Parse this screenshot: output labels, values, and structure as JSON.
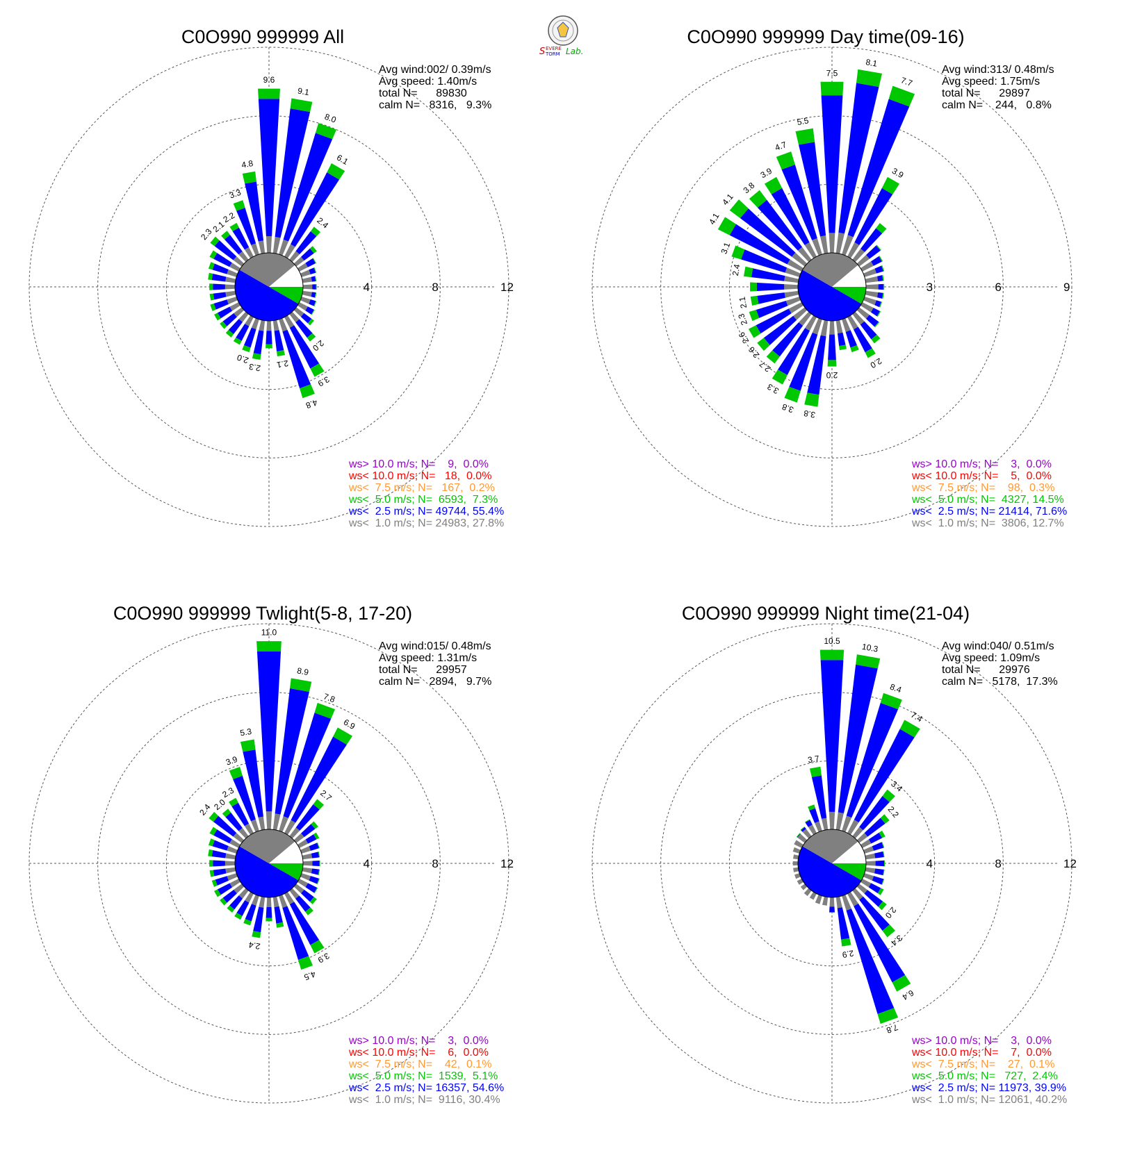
{
  "logo": {
    "text": "Severe Storm Lab."
  },
  "colors": {
    "gray": "#808080",
    "blue": "#0000ff",
    "green": "#00c800",
    "orange": "#ff9933",
    "red": "#ff0000",
    "purple": "#9900cc"
  },
  "chart_data": [
    {
      "type": "windrose",
      "title": "C0O990 999999 All",
      "stats": [
        "Avg wind:002/ 0.39m/s",
        "Avg speed: 1.40m/s",
        "total N=      89830",
        "calm N=   8316,   9.3%"
      ],
      "rings": [
        4,
        8,
        12
      ],
      "legend": [
        {
          "text": "ws> 10.0 m/s; N=    9,  0.0%",
          "color": "#9900cc"
        },
        {
          "text": "ws< 10.0 m/s; N=   18,  0.0%",
          "color": "#ff0000"
        },
        {
          "text": "ws<  7.5 m/s; N=   167,  0.2%",
          "color": "#ff9933"
        },
        {
          "text": "ws<  5.0 m/s; N=  6593,  7.3%",
          "color": "#00c800"
        },
        {
          "text": "ws<  2.5 m/s; N= 49744, 55.4%",
          "color": "#0000ff"
        },
        {
          "text": "ws<  1.0 m/s; N= 24983, 27.8%",
          "color": "#808080"
        }
      ],
      "sectors": [
        {
          "dir": 0,
          "total": 9.6,
          "label": "9.6"
        },
        {
          "dir": 10,
          "total": 9.1,
          "label": "9.1"
        },
        {
          "dir": 20,
          "total": 8.0,
          "label": "8.0"
        },
        {
          "dir": 30,
          "total": 6.1,
          "label": "6.1"
        },
        {
          "dir": 40,
          "total": 2.4,
          "label": "2.4"
        },
        {
          "dir": 50,
          "total": 1.5,
          "label": ""
        },
        {
          "dir": 60,
          "total": 1.1,
          "label": ""
        },
        {
          "dir": 70,
          "total": 0.9,
          "label": ""
        },
        {
          "dir": 80,
          "total": 0.8,
          "label": ""
        },
        {
          "dir": 90,
          "total": 0.8,
          "label": ""
        },
        {
          "dir": 100,
          "total": 0.8,
          "label": ""
        },
        {
          "dir": 110,
          "total": 0.9,
          "label": ""
        },
        {
          "dir": 120,
          "total": 1.0,
          "label": ""
        },
        {
          "dir": 130,
          "total": 1.3,
          "label": ""
        },
        {
          "dir": 140,
          "total": 2.0,
          "label": "2.0"
        },
        {
          "dir": 150,
          "total": 3.9,
          "label": "3.9"
        },
        {
          "dir": 160,
          "total": 4.8,
          "label": "4.8"
        },
        {
          "dir": 170,
          "total": 2.1,
          "label": "2.1"
        },
        {
          "dir": 180,
          "total": 1.6,
          "label": ""
        },
        {
          "dir": 190,
          "total": 2.3,
          "label": "2.3"
        },
        {
          "dir": 200,
          "total": 2.0,
          "label": "2.0"
        },
        {
          "dir": 210,
          "total": 1.8,
          "label": ""
        },
        {
          "dir": 220,
          "total": 1.7,
          "label": ""
        },
        {
          "dir": 230,
          "total": 1.6,
          "label": ""
        },
        {
          "dir": 240,
          "total": 1.6,
          "label": ""
        },
        {
          "dir": 250,
          "total": 1.6,
          "label": ""
        },
        {
          "dir": 260,
          "total": 1.5,
          "label": ""
        },
        {
          "dir": 270,
          "total": 1.5,
          "label": ""
        },
        {
          "dir": 280,
          "total": 1.6,
          "label": ""
        },
        {
          "dir": 290,
          "total": 1.7,
          "label": ""
        },
        {
          "dir": 300,
          "total": 1.9,
          "label": ""
        },
        {
          "dir": 310,
          "total": 2.3,
          "label": "2.3"
        },
        {
          "dir": 320,
          "total": 2.1,
          "label": "2.1"
        },
        {
          "dir": 330,
          "total": 2.2,
          "label": "2.2"
        },
        {
          "dir": 340,
          "total": 3.3,
          "label": "3.3"
        },
        {
          "dir": 350,
          "total": 4.8,
          "label": "4.8"
        }
      ]
    },
    {
      "type": "windrose",
      "title": "C0O990 999999 Day time(09-16)",
      "stats": [
        "Avg wind:313/ 0.48m/s",
        "Avg speed: 1.75m/s",
        "total N=      29897",
        "calm N=    244,   0.8%"
      ],
      "rings": [
        3,
        6,
        9
      ],
      "legend": [
        {
          "text": "ws> 10.0 m/s; N=    3,  0.0%",
          "color": "#9900cc"
        },
        {
          "text": "ws< 10.0 m/s; N=    5,  0.0%",
          "color": "#ff0000"
        },
        {
          "text": "ws<  7.5 m/s; N=    98,  0.3%",
          "color": "#ff9933"
        },
        {
          "text": "ws<  5.0 m/s; N=  4327, 14.5%",
          "color": "#00c800"
        },
        {
          "text": "ws<  2.5 m/s; N= 21414, 71.6%",
          "color": "#0000ff"
        },
        {
          "text": "ws<  1.0 m/s; N=  3806, 12.7%",
          "color": "#808080"
        }
      ],
      "sectors": [
        {
          "dir": 0,
          "total": 7.5,
          "label": "7.5"
        },
        {
          "dir": 10,
          "total": 8.1,
          "label": "8.1"
        },
        {
          "dir": 20,
          "total": 7.7,
          "label": "7.7"
        },
        {
          "dir": 30,
          "total": 3.9,
          "label": "3.9"
        },
        {
          "dir": 40,
          "total": 2.0,
          "label": ""
        },
        {
          "dir": 50,
          "total": 1.2,
          "label": ""
        },
        {
          "dir": 60,
          "total": 1.0,
          "label": ""
        },
        {
          "dir": 70,
          "total": 0.9,
          "label": ""
        },
        {
          "dir": 80,
          "total": 0.8,
          "label": ""
        },
        {
          "dir": 90,
          "total": 0.8,
          "label": ""
        },
        {
          "dir": 100,
          "total": 0.8,
          "label": ""
        },
        {
          "dir": 110,
          "total": 0.8,
          "label": ""
        },
        {
          "dir": 120,
          "total": 0.9,
          "label": ""
        },
        {
          "dir": 130,
          "total": 1.1,
          "label": ""
        },
        {
          "dir": 140,
          "total": 1.6,
          "label": ""
        },
        {
          "dir": 150,
          "total": 2.0,
          "label": "2.0"
        },
        {
          "dir": 160,
          "total": 1.5,
          "label": ""
        },
        {
          "dir": 170,
          "total": 1.3,
          "label": ""
        },
        {
          "dir": 180,
          "total": 2.0,
          "label": "2.0"
        },
        {
          "dir": 190,
          "total": 3.8,
          "label": "3.8"
        },
        {
          "dir": 200,
          "total": 3.8,
          "label": "3.8"
        },
        {
          "dir": 210,
          "total": 3.3,
          "label": "3.3"
        },
        {
          "dir": 220,
          "total": 2.7,
          "label": "2.7"
        },
        {
          "dir": 230,
          "total": 2.6,
          "label": "2.6"
        },
        {
          "dir": 240,
          "total": 2.6,
          "label": "2.6"
        },
        {
          "dir": 250,
          "total": 2.3,
          "label": "2.3"
        },
        {
          "dir": 260,
          "total": 2.1,
          "label": "2.1"
        },
        {
          "dir": 270,
          "total": 2.1,
          "label": ""
        },
        {
          "dir": 280,
          "total": 2.4,
          "label": "2.4"
        },
        {
          "dir": 290,
          "total": 3.1,
          "label": "3.1"
        },
        {
          "dir": 300,
          "total": 4.1,
          "label": "4.1"
        },
        {
          "dir": 310,
          "total": 4.1,
          "label": "4.1"
        },
        {
          "dir": 320,
          "total": 3.8,
          "label": "3.8"
        },
        {
          "dir": 330,
          "total": 3.9,
          "label": "3.9"
        },
        {
          "dir": 340,
          "total": 4.7,
          "label": "4.7"
        },
        {
          "dir": 350,
          "total": 5.5,
          "label": "5.5"
        }
      ]
    },
    {
      "type": "windrose",
      "title": "C0O990 999999 Twlight(5-8, 17-20)",
      "stats": [
        "Avg wind:015/ 0.48m/s",
        "Avg speed: 1.31m/s",
        "total N=      29957",
        "calm N=   2894,   9.7%"
      ],
      "rings": [
        4,
        8,
        12
      ],
      "legend": [
        {
          "text": "ws> 10.0 m/s; N=    3,  0.0%",
          "color": "#9900cc"
        },
        {
          "text": "ws< 10.0 m/s; N=    6,  0.0%",
          "color": "#ff0000"
        },
        {
          "text": "ws<  7.5 m/s; N=    42,  0.1%",
          "color": "#ff9933"
        },
        {
          "text": "ws<  5.0 m/s; N=  1539,  5.1%",
          "color": "#00c800"
        },
        {
          "text": "ws<  2.5 m/s; N= 16357, 54.6%",
          "color": "#0000ff"
        },
        {
          "text": "ws<  1.0 m/s; N=  9116, 30.4%",
          "color": "#808080"
        }
      ],
      "sectors": [
        {
          "dir": 0,
          "total": 11.0,
          "label": "11.0"
        },
        {
          "dir": 10,
          "total": 8.9,
          "label": "8.9"
        },
        {
          "dir": 20,
          "total": 7.8,
          "label": "7.8"
        },
        {
          "dir": 30,
          "total": 6.9,
          "label": "6.9"
        },
        {
          "dir": 40,
          "total": 2.7,
          "label": "2.7"
        },
        {
          "dir": 50,
          "total": 1.6,
          "label": ""
        },
        {
          "dir": 60,
          "total": 1.3,
          "label": ""
        },
        {
          "dir": 70,
          "total": 1.1,
          "label": ""
        },
        {
          "dir": 80,
          "total": 1.0,
          "label": ""
        },
        {
          "dir": 90,
          "total": 1.0,
          "label": ""
        },
        {
          "dir": 100,
          "total": 1.0,
          "label": ""
        },
        {
          "dir": 110,
          "total": 1.1,
          "label": ""
        },
        {
          "dir": 120,
          "total": 1.2,
          "label": ""
        },
        {
          "dir": 130,
          "total": 1.5,
          "label": ""
        },
        {
          "dir": 140,
          "total": 1.8,
          "label": ""
        },
        {
          "dir": 150,
          "total": 3.9,
          "label": "3.9"
        },
        {
          "dir": 160,
          "total": 4.5,
          "label": "4.5"
        },
        {
          "dir": 170,
          "total": 1.8,
          "label": ""
        },
        {
          "dir": 180,
          "total": 1.4,
          "label": ""
        },
        {
          "dir": 190,
          "total": 2.4,
          "label": "2.4"
        },
        {
          "dir": 200,
          "total": 1.8,
          "label": ""
        },
        {
          "dir": 210,
          "total": 1.7,
          "label": ""
        },
        {
          "dir": 220,
          "total": 1.6,
          "label": ""
        },
        {
          "dir": 230,
          "total": 1.6,
          "label": ""
        },
        {
          "dir": 240,
          "total": 1.6,
          "label": ""
        },
        {
          "dir": 250,
          "total": 1.5,
          "label": ""
        },
        {
          "dir": 260,
          "total": 1.5,
          "label": ""
        },
        {
          "dir": 270,
          "total": 1.5,
          "label": ""
        },
        {
          "dir": 280,
          "total": 1.6,
          "label": ""
        },
        {
          "dir": 290,
          "total": 1.7,
          "label": ""
        },
        {
          "dir": 300,
          "total": 1.9,
          "label": ""
        },
        {
          "dir": 310,
          "total": 2.4,
          "label": "2.4"
        },
        {
          "dir": 320,
          "total": 2.0,
          "label": "2.0"
        },
        {
          "dir": 330,
          "total": 2.3,
          "label": "2.3"
        },
        {
          "dir": 340,
          "total": 3.9,
          "label": "3.9"
        },
        {
          "dir": 350,
          "total": 5.3,
          "label": "5.3"
        }
      ]
    },
    {
      "type": "windrose",
      "title": "C0O990 999999 Night time(21-04)",
      "stats": [
        "Avg wind:040/ 0.51m/s",
        "Avg speed: 1.09m/s",
        "total N=      29976",
        "calm N=   5178,  17.3%"
      ],
      "rings": [
        4,
        8,
        12
      ],
      "legend": [
        {
          "text": "ws> 10.0 m/s; N=    3,  0.0%",
          "color": "#9900cc"
        },
        {
          "text": "ws< 10.0 m/s; N=    7,  0.0%",
          "color": "#ff0000"
        },
        {
          "text": "ws<  7.5 m/s; N=    27,  0.1%",
          "color": "#ff9933"
        },
        {
          "text": "ws<  5.0 m/s; N=   727,  2.4%",
          "color": "#00c800"
        },
        {
          "text": "ws<  2.5 m/s; N= 11973, 39.9%",
          "color": "#0000ff"
        },
        {
          "text": "ws<  1.0 m/s; N= 12061, 40.2%",
          "color": "#808080"
        }
      ],
      "sectors": [
        {
          "dir": 0,
          "total": 10.5,
          "label": "10.5"
        },
        {
          "dir": 10,
          "total": 10.3,
          "label": "10.3"
        },
        {
          "dir": 20,
          "total": 8.4,
          "label": "8.4"
        },
        {
          "dir": 30,
          "total": 7.4,
          "label": "7.4"
        },
        {
          "dir": 40,
          "total": 3.4,
          "label": "3.4"
        },
        {
          "dir": 50,
          "total": 2.2,
          "label": "2.2"
        },
        {
          "dir": 60,
          "total": 1.5,
          "label": ""
        },
        {
          "dir": 70,
          "total": 1.2,
          "label": ""
        },
        {
          "dir": 80,
          "total": 1.1,
          "label": ""
        },
        {
          "dir": 90,
          "total": 1.1,
          "label": ""
        },
        {
          "dir": 100,
          "total": 1.1,
          "label": ""
        },
        {
          "dir": 110,
          "total": 1.2,
          "label": ""
        },
        {
          "dir": 120,
          "total": 1.4,
          "label": ""
        },
        {
          "dir": 130,
          "total": 2.0,
          "label": "2.0"
        },
        {
          "dir": 140,
          "total": 3.4,
          "label": "3.4"
        },
        {
          "dir": 150,
          "total": 6.4,
          "label": "6.4"
        },
        {
          "dir": 160,
          "total": 7.8,
          "label": "7.8"
        },
        {
          "dir": 170,
          "total": 2.9,
          "label": "2.9"
        },
        {
          "dir": 180,
          "total": 0.9,
          "label": ""
        },
        {
          "dir": 190,
          "total": 0.5,
          "label": ""
        },
        {
          "dir": 200,
          "total": 0.5,
          "label": ""
        },
        {
          "dir": 210,
          "total": 0.4,
          "label": ""
        },
        {
          "dir": 220,
          "total": 0.4,
          "label": ""
        },
        {
          "dir": 230,
          "total": 0.3,
          "label": ""
        },
        {
          "dir": 240,
          "total": 0.3,
          "label": ""
        },
        {
          "dir": 250,
          "total": 0.3,
          "label": ""
        },
        {
          "dir": 260,
          "total": 0.3,
          "label": ""
        },
        {
          "dir": 270,
          "total": 0.3,
          "label": ""
        },
        {
          "dir": 280,
          "total": 0.3,
          "label": ""
        },
        {
          "dir": 290,
          "total": 0.4,
          "label": ""
        },
        {
          "dir": 300,
          "total": 0.5,
          "label": ""
        },
        {
          "dir": 310,
          "total": 0.6,
          "label": ""
        },
        {
          "dir": 320,
          "total": 0.7,
          "label": ""
        },
        {
          "dir": 330,
          "total": 0.9,
          "label": ""
        },
        {
          "dir": 340,
          "total": 1.6,
          "label": ""
        },
        {
          "dir": 350,
          "total": 3.7,
          "label": "3.7"
        }
      ]
    }
  ]
}
